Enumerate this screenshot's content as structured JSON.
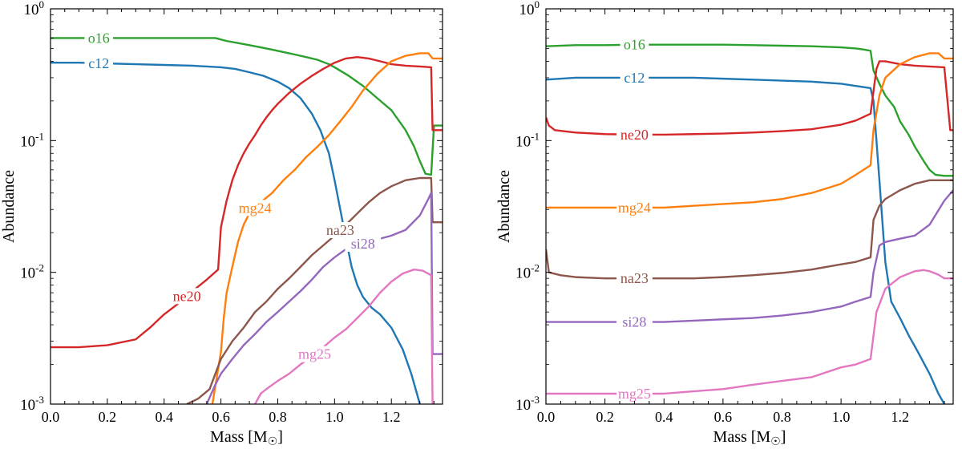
{
  "chart_data": [
    {
      "type": "line",
      "title": "",
      "xlabel": "Mass [M",
      "xlabel_symbol": "☉",
      "xlabel_close": "]",
      "ylabel": "Abundance",
      "xlim": [
        0.0,
        1.38
      ],
      "ylim": [
        0.001,
        1.0
      ],
      "yscale": "log",
      "grid": false,
      "legend": "inline labels",
      "xticks": [
        0.0,
        0.2,
        0.4,
        0.6,
        0.8,
        1.0,
        1.2
      ],
      "xtick_labels": [
        "0.0",
        "0.2",
        "0.4",
        "0.6",
        "0.8",
        "1.0",
        "1.2"
      ],
      "yticks": [
        0.001,
        0.01,
        0.1,
        1.0
      ],
      "ytick_base": "10",
      "ytick_exps": [
        "-3",
        "-2",
        "-1",
        "0"
      ],
      "series": [
        {
          "name": "o16",
          "color": "#2ca02c",
          "label_x": 0.17,
          "x": [
            0.0,
            0.1,
            0.2,
            0.3,
            0.4,
            0.5,
            0.58,
            0.62,
            0.66,
            0.7,
            0.74,
            0.78,
            0.82,
            0.86,
            0.9,
            0.94,
            0.98,
            1.0,
            1.05,
            1.1,
            1.15,
            1.2,
            1.25,
            1.28,
            1.3,
            1.32,
            1.34,
            1.35,
            1.38
          ],
          "values": [
            0.6,
            0.6,
            0.6,
            0.6,
            0.6,
            0.6,
            0.6,
            0.57,
            0.55,
            0.53,
            0.51,
            0.49,
            0.47,
            0.45,
            0.43,
            0.41,
            0.38,
            0.36,
            0.31,
            0.26,
            0.21,
            0.17,
            0.12,
            0.09,
            0.07,
            0.056,
            0.055,
            0.13,
            0.13
          ]
        },
        {
          "name": "c12",
          "color": "#1f77b4",
          "label_x": 0.17,
          "x": [
            0.0,
            0.1,
            0.2,
            0.3,
            0.4,
            0.5,
            0.6,
            0.65,
            0.7,
            0.75,
            0.8,
            0.84,
            0.88,
            0.92,
            0.95,
            0.98,
            1.0,
            1.02,
            1.04,
            1.06,
            1.08,
            1.1,
            1.13,
            1.16,
            1.2,
            1.24,
            1.27,
            1.29,
            1.3
          ],
          "values": [
            0.39,
            0.39,
            0.385,
            0.38,
            0.375,
            0.37,
            0.36,
            0.35,
            0.33,
            0.31,
            0.28,
            0.25,
            0.21,
            0.16,
            0.12,
            0.08,
            0.05,
            0.03,
            0.018,
            0.011,
            0.008,
            0.0065,
            0.0054,
            0.0048,
            0.0038,
            0.0026,
            0.0017,
            0.0012,
            0.001
          ]
        },
        {
          "name": "ne20",
          "color": "#d62728",
          "label_x": 0.48,
          "x": [
            0.0,
            0.1,
            0.2,
            0.3,
            0.35,
            0.4,
            0.45,
            0.5,
            0.55,
            0.59,
            0.6,
            0.62,
            0.64,
            0.66,
            0.68,
            0.7,
            0.72,
            0.74,
            0.76,
            0.78,
            0.8,
            0.84,
            0.88,
            0.92,
            0.96,
            1.0,
            1.04,
            1.08,
            1.12,
            1.16,
            1.2,
            1.25,
            1.3,
            1.34,
            1.345,
            1.38
          ],
          "values": [
            0.0027,
            0.0027,
            0.0028,
            0.0031,
            0.0038,
            0.0048,
            0.0058,
            0.0072,
            0.0088,
            0.0105,
            0.022,
            0.035,
            0.05,
            0.065,
            0.08,
            0.095,
            0.11,
            0.13,
            0.15,
            0.17,
            0.19,
            0.23,
            0.27,
            0.31,
            0.35,
            0.39,
            0.42,
            0.43,
            0.42,
            0.4,
            0.38,
            0.37,
            0.365,
            0.36,
            0.12,
            0.12
          ]
        },
        {
          "name": "mg24",
          "color": "#ff7f0e",
          "label_x": 0.72,
          "x": [
            0.57,
            0.6,
            0.61,
            0.62,
            0.64,
            0.66,
            0.68,
            0.7,
            0.74,
            0.78,
            0.82,
            0.86,
            0.9,
            0.94,
            0.98,
            1.02,
            1.06,
            1.1,
            1.15,
            1.2,
            1.25,
            1.3,
            1.33,
            1.345,
            1.38
          ],
          "values": [
            0.001,
            0.0025,
            0.0045,
            0.007,
            0.011,
            0.017,
            0.023,
            0.028,
            0.034,
            0.04,
            0.05,
            0.06,
            0.075,
            0.09,
            0.11,
            0.14,
            0.18,
            0.24,
            0.32,
            0.4,
            0.44,
            0.46,
            0.46,
            0.42,
            0.42
          ]
        },
        {
          "name": "na23",
          "color": "#8c564b",
          "label_x": 1.02,
          "x": [
            0.48,
            0.52,
            0.56,
            0.6,
            0.64,
            0.68,
            0.72,
            0.76,
            0.8,
            0.84,
            0.88,
            0.92,
            0.96,
            1.0,
            1.04,
            1.08,
            1.12,
            1.16,
            1.2,
            1.25,
            1.3,
            1.34,
            1.345,
            1.38
          ],
          "values": [
            0.001,
            0.0011,
            0.0013,
            0.0022,
            0.003,
            0.0038,
            0.005,
            0.006,
            0.0075,
            0.009,
            0.011,
            0.0135,
            0.016,
            0.019,
            0.023,
            0.028,
            0.034,
            0.04,
            0.045,
            0.05,
            0.052,
            0.052,
            0.024,
            0.024
          ]
        },
        {
          "name": "si28",
          "color": "#9467bd",
          "label_x": 1.1,
          "x": [
            0.55,
            0.58,
            0.6,
            0.64,
            0.68,
            0.72,
            0.76,
            0.8,
            0.84,
            0.88,
            0.92,
            0.96,
            1.0,
            1.04,
            1.08,
            1.12,
            1.16,
            1.2,
            1.25,
            1.3,
            1.33,
            1.34,
            1.345,
            1.38
          ],
          "values": [
            0.001,
            0.0014,
            0.0017,
            0.0022,
            0.0028,
            0.0034,
            0.0042,
            0.005,
            0.006,
            0.0072,
            0.0088,
            0.011,
            0.013,
            0.015,
            0.016,
            0.017,
            0.018,
            0.019,
            0.021,
            0.027,
            0.036,
            0.04,
            0.0024,
            0.0024
          ]
        },
        {
          "name": "mg25",
          "color": "#e377c2",
          "label_x": 0.93,
          "x": [
            0.72,
            0.74,
            0.76,
            0.8,
            0.84,
            0.88,
            0.92,
            0.96,
            1.0,
            1.04,
            1.08,
            1.12,
            1.16,
            1.2,
            1.24,
            1.28,
            1.31,
            1.34,
            1.345
          ],
          "values": [
            0.001,
            0.0012,
            0.0013,
            0.0015,
            0.0017,
            0.002,
            0.0023,
            0.0027,
            0.0032,
            0.0037,
            0.0045,
            0.0055,
            0.007,
            0.0085,
            0.0098,
            0.0105,
            0.0103,
            0.0095,
            0.001
          ]
        }
      ]
    },
    {
      "type": "line",
      "title": "",
      "xlabel": "Mass [M",
      "xlabel_symbol": "☉",
      "xlabel_close": "]",
      "ylabel": "Abundance",
      "xlim": [
        0.0,
        1.38
      ],
      "ylim": [
        0.001,
        1.0
      ],
      "yscale": "log",
      "grid": false,
      "legend": "inline labels",
      "xticks": [
        0.0,
        0.2,
        0.4,
        0.6,
        0.8,
        1.0,
        1.2
      ],
      "xtick_labels": [
        "0.0",
        "0.2",
        "0.4",
        "0.6",
        "0.8",
        "1.0",
        "1.2"
      ],
      "yticks": [
        0.001,
        0.01,
        0.1,
        1.0
      ],
      "ytick_base": "10",
      "ytick_exps": [
        "-3",
        "-2",
        "-1",
        "0"
      ],
      "series": [
        {
          "name": "o16",
          "color": "#2ca02c",
          "label_x": 0.3,
          "x": [
            0.0,
            0.1,
            0.2,
            0.3,
            0.4,
            0.5,
            0.6,
            0.7,
            0.8,
            0.9,
            1.0,
            1.05,
            1.08,
            1.1,
            1.11,
            1.13,
            1.15,
            1.18,
            1.2,
            1.23,
            1.25,
            1.28,
            1.3,
            1.32,
            1.35,
            1.38
          ],
          "values": [
            0.52,
            0.53,
            0.53,
            0.535,
            0.535,
            0.535,
            0.535,
            0.53,
            0.525,
            0.52,
            0.51,
            0.5,
            0.49,
            0.48,
            0.34,
            0.27,
            0.22,
            0.18,
            0.14,
            0.11,
            0.09,
            0.07,
            0.06,
            0.055,
            0.054,
            0.054
          ]
        },
        {
          "name": "c12",
          "color": "#1f77b4",
          "label_x": 0.3,
          "x": [
            0.0,
            0.1,
            0.2,
            0.3,
            0.4,
            0.5,
            0.6,
            0.7,
            0.8,
            0.9,
            1.0,
            1.05,
            1.1,
            1.11,
            1.13,
            1.15,
            1.17,
            1.2,
            1.23,
            1.26,
            1.3,
            1.33,
            1.35
          ],
          "values": [
            0.29,
            0.3,
            0.3,
            0.3,
            0.3,
            0.3,
            0.295,
            0.29,
            0.285,
            0.28,
            0.27,
            0.26,
            0.25,
            0.2,
            0.05,
            0.012,
            0.006,
            0.0045,
            0.0033,
            0.0025,
            0.0017,
            0.0012,
            0.001
          ]
        },
        {
          "name": "ne20",
          "color": "#d62728",
          "label_x": 0.3,
          "x": [
            0.0,
            0.01,
            0.03,
            0.1,
            0.2,
            0.3,
            0.4,
            0.5,
            0.6,
            0.7,
            0.8,
            0.9,
            1.0,
            1.05,
            1.1,
            1.12,
            1.13,
            1.15,
            1.2,
            1.25,
            1.3,
            1.35,
            1.37,
            1.38
          ],
          "values": [
            0.15,
            0.13,
            0.12,
            0.115,
            0.112,
            0.111,
            0.111,
            0.112,
            0.113,
            0.115,
            0.118,
            0.122,
            0.132,
            0.142,
            0.16,
            0.35,
            0.4,
            0.4,
            0.38,
            0.37,
            0.365,
            0.36,
            0.12,
            0.12
          ]
        },
        {
          "name": "mg24",
          "color": "#ff7f0e",
          "label_x": 0.3,
          "x": [
            0.0,
            0.1,
            0.2,
            0.3,
            0.4,
            0.5,
            0.6,
            0.7,
            0.8,
            0.9,
            1.0,
            1.05,
            1.1,
            1.11,
            1.13,
            1.15,
            1.2,
            1.25,
            1.3,
            1.33,
            1.35,
            1.38
          ],
          "values": [
            0.031,
            0.031,
            0.031,
            0.031,
            0.031,
            0.032,
            0.033,
            0.034,
            0.036,
            0.04,
            0.047,
            0.055,
            0.065,
            0.12,
            0.22,
            0.3,
            0.38,
            0.43,
            0.46,
            0.46,
            0.42,
            0.42
          ]
        },
        {
          "name": "na23",
          "color": "#8c564b",
          "label_x": 0.3,
          "x": [
            0.0,
            0.01,
            0.05,
            0.1,
            0.2,
            0.3,
            0.4,
            0.5,
            0.6,
            0.7,
            0.8,
            0.9,
            1.0,
            1.05,
            1.1,
            1.11,
            1.13,
            1.15,
            1.2,
            1.25,
            1.3,
            1.35,
            1.38
          ],
          "values": [
            0.015,
            0.01,
            0.0095,
            0.0092,
            0.009,
            0.009,
            0.009,
            0.009,
            0.0092,
            0.0095,
            0.0099,
            0.0105,
            0.0115,
            0.012,
            0.013,
            0.025,
            0.032,
            0.036,
            0.042,
            0.047,
            0.05,
            0.05,
            0.05
          ]
        },
        {
          "name": "si28",
          "color": "#9467bd",
          "label_x": 0.3,
          "x": [
            0.0,
            0.1,
            0.2,
            0.3,
            0.4,
            0.5,
            0.6,
            0.7,
            0.8,
            0.9,
            1.0,
            1.05,
            1.1,
            1.11,
            1.13,
            1.15,
            1.2,
            1.25,
            1.3,
            1.35,
            1.38
          ],
          "values": [
            0.0042,
            0.0042,
            0.0042,
            0.0042,
            0.0042,
            0.0043,
            0.0044,
            0.0045,
            0.0047,
            0.005,
            0.0055,
            0.006,
            0.0065,
            0.01,
            0.016,
            0.017,
            0.018,
            0.019,
            0.023,
            0.035,
            0.042
          ]
        },
        {
          "name": "mg25",
          "color": "#e377c2",
          "label_x": 0.3,
          "x": [
            0.0,
            0.1,
            0.2,
            0.3,
            0.4,
            0.5,
            0.6,
            0.7,
            0.8,
            0.9,
            1.0,
            1.05,
            1.1,
            1.12,
            1.15,
            1.2,
            1.25,
            1.28,
            1.3,
            1.33,
            1.35,
            1.38
          ],
          "values": [
            0.0012,
            0.0012,
            0.0012,
            0.0012,
            0.0012,
            0.00125,
            0.0013,
            0.0014,
            0.0015,
            0.0016,
            0.0019,
            0.002,
            0.0022,
            0.005,
            0.0075,
            0.0092,
            0.0102,
            0.0104,
            0.0102,
            0.0096,
            0.009,
            0.009
          ]
        }
      ]
    }
  ]
}
